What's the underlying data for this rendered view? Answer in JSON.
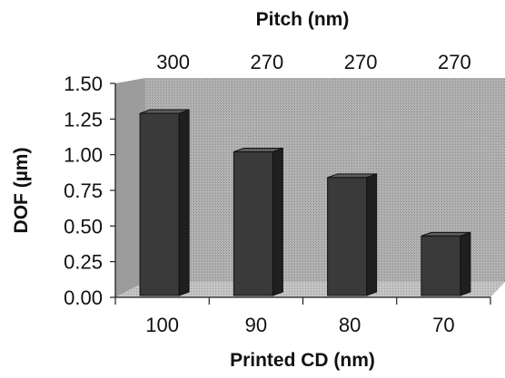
{
  "chart_data": {
    "type": "bar",
    "title": "",
    "xlabel": "Printed CD (nm)",
    "ylabel": "DOF (µm)",
    "secondary_xlabel": "Pitch (nm)",
    "categories": [
      "100",
      "90",
      "80",
      "70"
    ],
    "secondary_categories": [
      "300",
      "270",
      "270",
      "270"
    ],
    "values": [
      1.29,
      1.02,
      0.84,
      0.43
    ],
    "y_ticks": [
      "0.00",
      "0.25",
      "0.50",
      "0.75",
      "1.00",
      "1.25",
      "1.50"
    ],
    "ylim": [
      0,
      1.5
    ],
    "grid": false,
    "legend": "none",
    "style": "3d-column",
    "colors": {
      "bar_front": "#3a3a3a",
      "bar_side": "#1f1f1f",
      "bar_top": "#5c5c5c",
      "wall": "#a8a8a8",
      "floor": "#bcbcbc"
    }
  }
}
